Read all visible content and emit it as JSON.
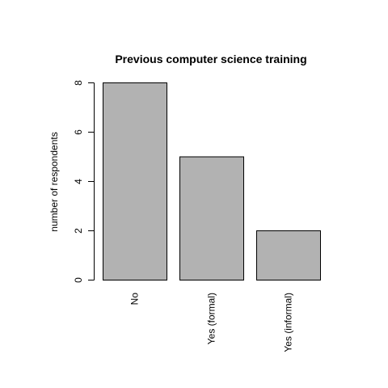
{
  "chart_data": {
    "type": "bar",
    "title": "Previous computer science training",
    "xlabel": "",
    "ylabel": "number of respondents",
    "categories": [
      "No",
      "Yes (formal)",
      "Yes (informal)"
    ],
    "values": [
      8,
      5,
      2
    ],
    "ylim": [
      0,
      8
    ],
    "yticks": [
      0,
      2,
      4,
      6,
      8
    ],
    "grid": false,
    "bar_color": "#b2b2b2",
    "bar_border_color": "#000000",
    "category_label_orientation": "vertical"
  }
}
